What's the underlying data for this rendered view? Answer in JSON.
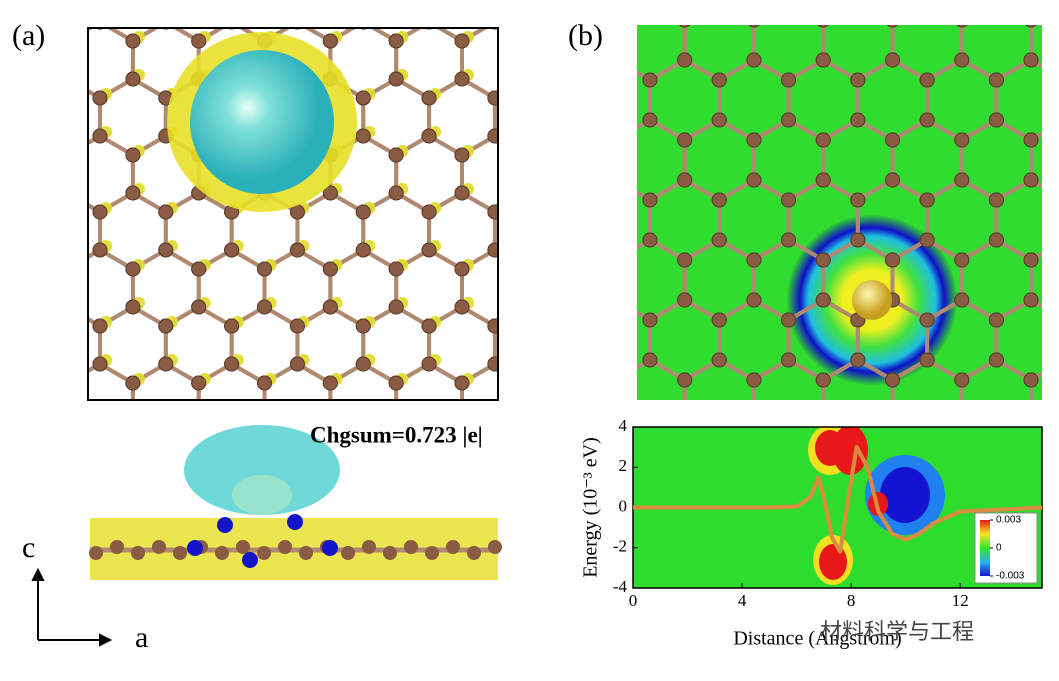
{
  "panel_labels": {
    "a": "(a)",
    "b": "(b)"
  },
  "charge_sum": "Chgsum=0.723 |e|",
  "axis_labels": {
    "c": "c",
    "a": "a"
  },
  "watermark": "材料科学与工程",
  "chart_data": {
    "type": "line",
    "xlabel": "Distance (Angstrom)",
    "ylabel": "Energy (10⁻³ eV)",
    "x": [
      0,
      5,
      6,
      6.5,
      6.8,
      7.0,
      7.3,
      7.6,
      7.9,
      8.2,
      8.6,
      9.0,
      9.5,
      10,
      10.5,
      11,
      12,
      15
    ],
    "series": [
      {
        "color": "#d98c3e",
        "values": [
          0,
          0,
          0.05,
          0.5,
          1.5,
          0.5,
          -1.5,
          -2.2,
          0.5,
          3,
          2,
          -0.2,
          -1.3,
          -1.6,
          -1.3,
          -0.8,
          -0.2,
          0
        ]
      }
    ],
    "xlim": [
      0,
      15
    ],
    "ylim": [
      -4,
      4
    ],
    "xticks": [
      0,
      4,
      8,
      12
    ],
    "yticks": [
      4,
      2,
      0,
      -2,
      -4
    ],
    "colorbar": {
      "ticks": [
        0.003,
        0,
        -0.003
      ],
      "colors": [
        "#e8141c",
        "#f5e81c",
        "#2ee62e",
        "#2ab4e6",
        "#1414d2"
      ]
    }
  }
}
